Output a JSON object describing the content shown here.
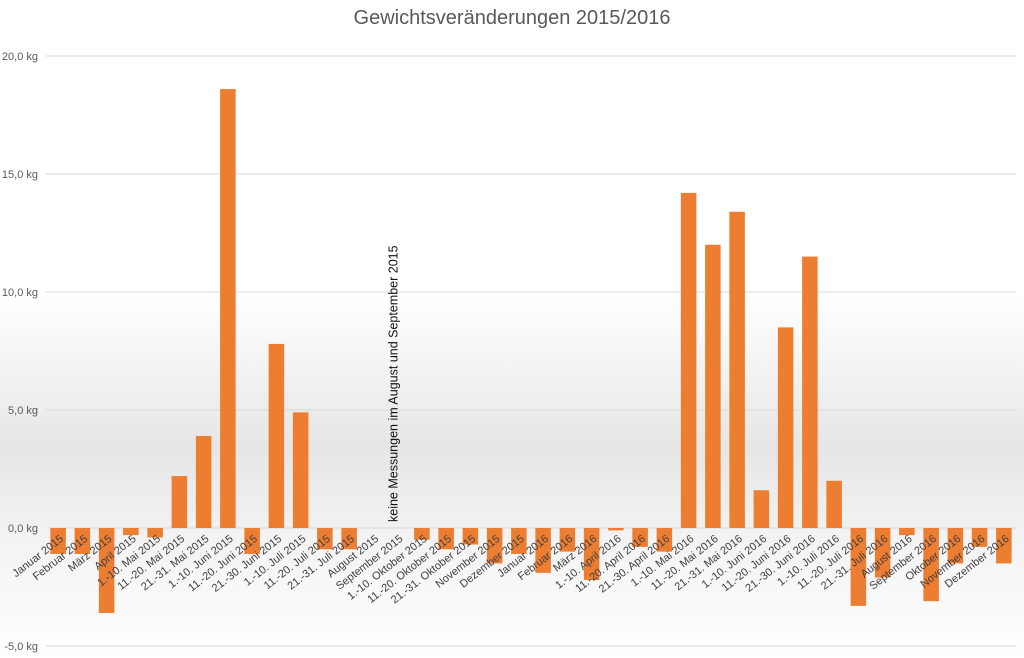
{
  "chart_data": {
    "type": "bar",
    "title": "Gewichtsveränderungen 2015/2016",
    "xlabel": "",
    "ylabel": "",
    "ylim": [
      -5,
      20
    ],
    "yticks": [
      "-5,0 kg",
      "0,0 kg",
      "5,0 kg",
      "10,0 kg",
      "15,0 kg",
      "20,0 kg"
    ],
    "ytick_values": [
      -5,
      0,
      5,
      10,
      15,
      20
    ],
    "grid": true,
    "bar_color": "#ED7D31",
    "categories": [
      "Januar 2015",
      "Februar 2015",
      "März 2015",
      "April 2015",
      "1.-10. Mai 2015",
      "11.-20. Mai 2015",
      "21.-31. Mai 2015",
      "1.-10. Juni 2015",
      "11.-20. Juni 2015",
      "21.-30. Juni 2015",
      "1.-10. Juli 2015",
      "11.-20. Juli 2015",
      "21.-31. Juli 2015",
      "August 2015",
      "September 2015",
      "1.-10. Oktober 2015",
      "11.-20. Oktober 2015",
      "21.-31. Oktober 2015",
      "November 2015",
      "Dezember 2015",
      "Januar 2016",
      "Februar 2016",
      "März 2016",
      "1.-10. April 2016",
      "11.-20. April 2016",
      "21.-30. April 2016",
      "1.-10. Mai 2016",
      "11.-20. Mai 2016",
      "21.-31. Mai 2016",
      "1.-10. Juni 2016",
      "11.-20. Juni 2016",
      "21.-30. Juni 2016",
      "1.-10. Juli 2016",
      "11.-20. Juli 2016",
      "21.-31. Juli 2016",
      "August 2016",
      "September 2016",
      "Oktober 2016",
      "November 2016",
      "Dezember 2016"
    ],
    "values": [
      -1.1,
      -1.1,
      -3.6,
      -0.3,
      -0.4,
      2.2,
      3.9,
      18.6,
      -1.1,
      7.8,
      4.9,
      -0.9,
      -0.9,
      null,
      null,
      -0.5,
      -0.9,
      -0.7,
      -1.5,
      -1.1,
      -1.9,
      -1.0,
      -2.2,
      -0.1,
      -0.8,
      -1.0,
      14.2,
      12.0,
      13.4,
      1.6,
      8.5,
      11.5,
      2.0,
      -3.3,
      -2.1,
      -0.3,
      -3.1,
      -1.5,
      -0.8,
      -1.5
    ],
    "annotation": {
      "text": "keine Messungen im August und September 2015",
      "category": "September 2015"
    }
  }
}
